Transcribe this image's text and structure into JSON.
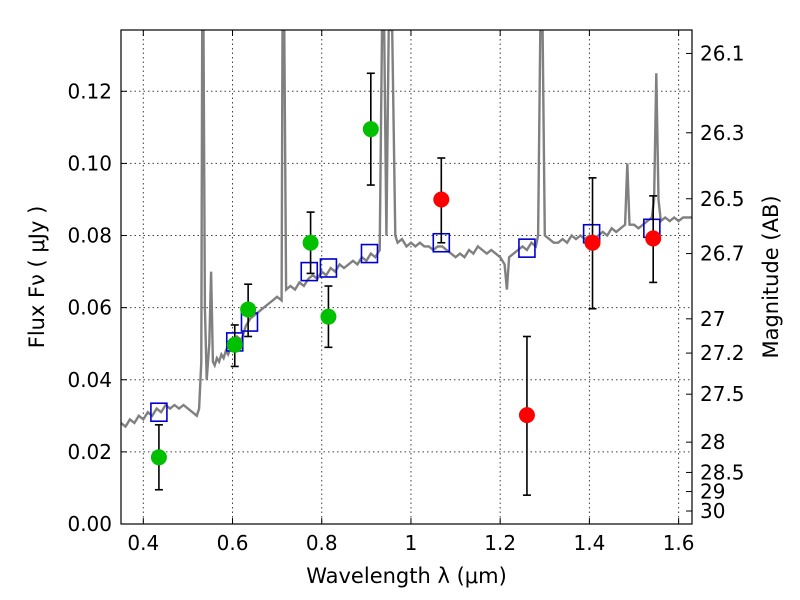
{
  "chart_data": {
    "type": "scatter",
    "xlabel": "Wavelength  λ (μm)",
    "ylabel": "Flux  Fν  ( μJy )",
    "ylabel_right": "Magnitude (AB)",
    "xlim": [
      0.35,
      1.63
    ],
    "ylim": [
      0.0,
      0.137
    ],
    "grid": true,
    "x_ticks": [
      {
        "value": 0.4,
        "label": "0.4"
      },
      {
        "value": 0.6,
        "label": "0.6"
      },
      {
        "value": 0.8,
        "label": "0.8"
      },
      {
        "value": 1.0,
        "label": "1"
      },
      {
        "value": 1.2,
        "label": "1.2"
      },
      {
        "value": 1.4,
        "label": "1.4"
      },
      {
        "value": 1.6,
        "label": "1.6"
      }
    ],
    "y_ticks": [
      {
        "value": 0.0,
        "label": "0.00"
      },
      {
        "value": 0.02,
        "label": "0.02"
      },
      {
        "value": 0.04,
        "label": "0.04"
      },
      {
        "value": 0.06,
        "label": "0.06"
      },
      {
        "value": 0.08,
        "label": "0.08"
      },
      {
        "value": 0.1,
        "label": "0.10"
      },
      {
        "value": 0.12,
        "label": "0.12"
      }
    ],
    "right_ticks": [
      {
        "label": "26.1",
        "flux": 0.1305
      },
      {
        "label": "26.3",
        "flux": 0.1085
      },
      {
        "label": "26.5",
        "flux": 0.0902
      },
      {
        "label": "26.7",
        "flux": 0.075
      },
      {
        "label": "27",
        "flux": 0.0569
      },
      {
        "label": "27.2",
        "flux": 0.0474
      },
      {
        "label": "27.5",
        "flux": 0.036
      },
      {
        "label": "28",
        "flux": 0.0227
      },
      {
        "label": "28.5",
        "flux": 0.0143
      },
      {
        "label": "29",
        "flux": 0.009
      },
      {
        "label": "30",
        "flux": 0.0036
      }
    ],
    "series": [
      {
        "kind": "spectrum",
        "color": "#808080",
        "points": [
          [
            0.35,
            0.028
          ],
          [
            0.36,
            0.027
          ],
          [
            0.37,
            0.029
          ],
          [
            0.38,
            0.028
          ],
          [
            0.39,
            0.03
          ],
          [
            0.4,
            0.029
          ],
          [
            0.41,
            0.031
          ],
          [
            0.42,
            0.03
          ],
          [
            0.43,
            0.032
          ],
          [
            0.44,
            0.031
          ],
          [
            0.45,
            0.033
          ],
          [
            0.46,
            0.032
          ],
          [
            0.47,
            0.033
          ],
          [
            0.48,
            0.032
          ],
          [
            0.49,
            0.033
          ],
          [
            0.5,
            0.032
          ],
          [
            0.51,
            0.031
          ],
          [
            0.52,
            0.03
          ],
          [
            0.525,
            0.032
          ],
          [
            0.53,
            0.045
          ],
          [
            0.532,
            0.137
          ],
          [
            0.535,
            0.137
          ],
          [
            0.538,
            0.06
          ],
          [
            0.542,
            0.04
          ],
          [
            0.548,
            0.05
          ],
          [
            0.552,
            0.07
          ],
          [
            0.556,
            0.045
          ],
          [
            0.56,
            0.044
          ],
          [
            0.565,
            0.046
          ],
          [
            0.57,
            0.045
          ],
          [
            0.575,
            0.047
          ],
          [
            0.58,
            0.046
          ],
          [
            0.585,
            0.048
          ],
          [
            0.59,
            0.047
          ],
          [
            0.6,
            0.05
          ],
          [
            0.61,
            0.052
          ],
          [
            0.62,
            0.051
          ],
          [
            0.63,
            0.055
          ],
          [
            0.64,
            0.057
          ],
          [
            0.65,
            0.058
          ],
          [
            0.66,
            0.059
          ],
          [
            0.67,
            0.06
          ],
          [
            0.68,
            0.061
          ],
          [
            0.69,
            0.062
          ],
          [
            0.7,
            0.063
          ],
          [
            0.71,
            0.062
          ],
          [
            0.712,
            0.137
          ],
          [
            0.716,
            0.137
          ],
          [
            0.72,
            0.065
          ],
          [
            0.73,
            0.066
          ],
          [
            0.74,
            0.065
          ],
          [
            0.75,
            0.067
          ],
          [
            0.76,
            0.066
          ],
          [
            0.77,
            0.068
          ],
          [
            0.78,
            0.069
          ],
          [
            0.79,
            0.068
          ],
          [
            0.8,
            0.07
          ],
          [
            0.81,
            0.069
          ],
          [
            0.82,
            0.071
          ],
          [
            0.83,
            0.07
          ],
          [
            0.84,
            0.072
          ],
          [
            0.85,
            0.071
          ],
          [
            0.86,
            0.072
          ],
          [
            0.87,
            0.073
          ],
          [
            0.88,
            0.072
          ],
          [
            0.89,
            0.074
          ],
          [
            0.9,
            0.073
          ],
          [
            0.91,
            0.075
          ],
          [
            0.92,
            0.074
          ],
          [
            0.93,
            0.076
          ],
          [
            0.935,
            0.137
          ],
          [
            0.94,
            0.137
          ],
          [
            0.945,
            0.08
          ],
          [
            0.95,
            0.137
          ],
          [
            0.958,
            0.137
          ],
          [
            0.965,
            0.08
          ],
          [
            0.97,
            0.078
          ],
          [
            0.98,
            0.079
          ],
          [
            0.99,
            0.077
          ],
          [
            1.0,
            0.078
          ],
          [
            1.01,
            0.077
          ],
          [
            1.02,
            0.078
          ],
          [
            1.03,
            0.077
          ],
          [
            1.04,
            0.077
          ],
          [
            1.05,
            0.076
          ],
          [
            1.06,
            0.077
          ],
          [
            1.07,
            0.077
          ],
          [
            1.08,
            0.076
          ],
          [
            1.09,
            0.075
          ],
          [
            1.1,
            0.074
          ],
          [
            1.11,
            0.075
          ],
          [
            1.12,
            0.074
          ],
          [
            1.13,
            0.076
          ],
          [
            1.14,
            0.075
          ],
          [
            1.15,
            0.077
          ],
          [
            1.16,
            0.076
          ],
          [
            1.17,
            0.075
          ],
          [
            1.18,
            0.076
          ],
          [
            1.19,
            0.075
          ],
          [
            1.2,
            0.074
          ],
          [
            1.21,
            0.072
          ],
          [
            1.215,
            0.065
          ],
          [
            1.22,
            0.074
          ],
          [
            1.23,
            0.075
          ],
          [
            1.24,
            0.076
          ],
          [
            1.25,
            0.077
          ],
          [
            1.26,
            0.076
          ],
          [
            1.27,
            0.078
          ],
          [
            1.28,
            0.077
          ],
          [
            1.285,
            0.08
          ],
          [
            1.29,
            0.137
          ],
          [
            1.295,
            0.137
          ],
          [
            1.3,
            0.08
          ],
          [
            1.31,
            0.079
          ],
          [
            1.32,
            0.078
          ],
          [
            1.33,
            0.078
          ],
          [
            1.34,
            0.079
          ],
          [
            1.35,
            0.078
          ],
          [
            1.36,
            0.08
          ],
          [
            1.37,
            0.079
          ],
          [
            1.38,
            0.08
          ],
          [
            1.39,
            0.079
          ],
          [
            1.4,
            0.08
          ],
          [
            1.41,
            0.079
          ],
          [
            1.42,
            0.08
          ],
          [
            1.43,
            0.081
          ],
          [
            1.44,
            0.08
          ],
          [
            1.45,
            0.082
          ],
          [
            1.46,
            0.081
          ],
          [
            1.47,
            0.082
          ],
          [
            1.48,
            0.083
          ],
          [
            1.485,
            0.1
          ],
          [
            1.49,
            0.083
          ],
          [
            1.5,
            0.083
          ],
          [
            1.51,
            0.082
          ],
          [
            1.52,
            0.083
          ],
          [
            1.53,
            0.084
          ],
          [
            1.54,
            0.085
          ],
          [
            1.545,
            0.09
          ],
          [
            1.55,
            0.125
          ],
          [
            1.555,
            0.09
          ],
          [
            1.56,
            0.084
          ],
          [
            1.57,
            0.085
          ],
          [
            1.58,
            0.084
          ],
          [
            1.59,
            0.085
          ],
          [
            1.6,
            0.084
          ],
          [
            1.61,
            0.085
          ],
          [
            1.63,
            0.085
          ]
        ]
      },
      {
        "kind": "model-squares",
        "color": "#0000cc",
        "points": [
          [
            0.435,
            0.031
          ],
          [
            0.605,
            0.0505
          ],
          [
            0.638,
            0.056
          ],
          [
            0.772,
            0.07
          ],
          [
            0.815,
            0.071
          ],
          [
            0.907,
            0.075
          ],
          [
            1.068,
            0.078
          ],
          [
            1.26,
            0.0765
          ],
          [
            1.405,
            0.0805
          ],
          [
            1.54,
            0.082
          ]
        ]
      },
      {
        "kind": "green-points",
        "color": "#00c000",
        "points": [
          {
            "x": 0.435,
            "y": 0.0185,
            "err_low": 0.0095,
            "err_high": 0.0275
          },
          {
            "x": 0.605,
            "y": 0.0497,
            "err_low": 0.0437,
            "err_high": 0.0552
          },
          {
            "x": 0.635,
            "y": 0.0595,
            "err_low": 0.052,
            "err_high": 0.0665
          },
          {
            "x": 0.775,
            "y": 0.078,
            "err_low": 0.0695,
            "err_high": 0.0865
          },
          {
            "x": 0.815,
            "y": 0.0575,
            "err_low": 0.049,
            "err_high": 0.066
          },
          {
            "x": 0.91,
            "y": 0.1095,
            "err_low": 0.094,
            "err_high": 0.125
          }
        ]
      },
      {
        "kind": "red-points",
        "color": "#ff0000",
        "points": [
          {
            "x": 1.068,
            "y": 0.09,
            "err_low": 0.078,
            "err_high": 0.1015
          },
          {
            "x": 1.26,
            "y": 0.0302,
            "err_low": 0.008,
            "err_high": 0.052
          },
          {
            "x": 1.407,
            "y": 0.078,
            "err_low": 0.0597,
            "err_high": 0.096
          },
          {
            "x": 1.543,
            "y": 0.0792,
            "err_low": 0.067,
            "err_high": 0.091
          }
        ]
      }
    ]
  }
}
